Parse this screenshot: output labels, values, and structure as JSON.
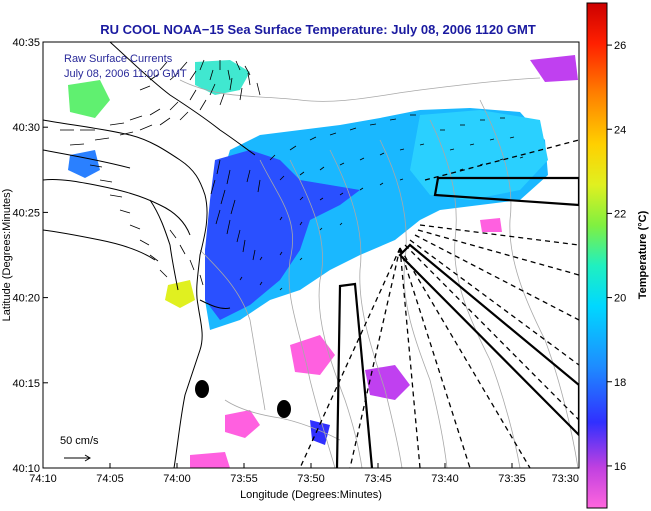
{
  "title": "RU COOL  NOAA−15  Sea Surface Temperature:  July 08, 2006 1120 GMT",
  "legend": {
    "line1": "Raw Surface Currents",
    "line2": "July 08, 2006 11:00 GMT"
  },
  "scale_label": "50 cm/s",
  "axes": {
    "xlabel": "Longitude (Degrees:Minutes)",
    "ylabel": "Latitude (Degrees:Minutes)",
    "x_ticks": [
      "74:10",
      "74:05",
      "74:00",
      "73:55",
      "73:50",
      "73:45",
      "73:40",
      "73:35",
      "73:30"
    ],
    "y_ticks": [
      "40:35",
      "40:30",
      "40:25",
      "40:20",
      "40:15",
      "40:10"
    ]
  },
  "colorbar": {
    "label": "Temperature (°C)",
    "ticks": [
      "26",
      "24",
      "22",
      "20",
      "18",
      "16"
    ],
    "min": 15,
    "max": 27
  },
  "colors": {
    "title": "#1a1aa0",
    "legend": "#2a2a9a"
  }
}
